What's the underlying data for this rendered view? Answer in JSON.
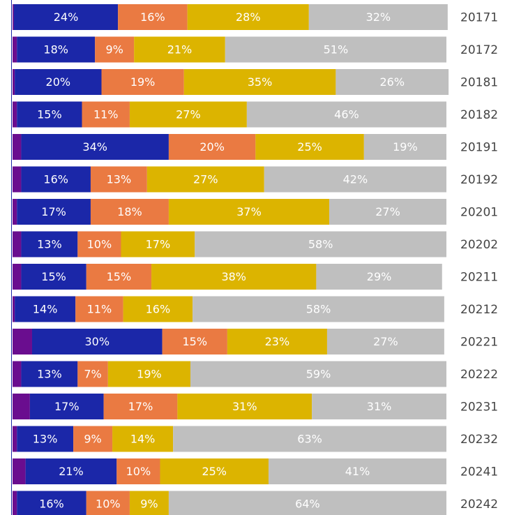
{
  "chart_data": {
    "type": "stacked-barh",
    "categories": [
      "20171",
      "20172",
      "20181",
      "20182",
      "20191",
      "20192",
      "20201",
      "20202",
      "20211",
      "20212",
      "20221",
      "20222",
      "20231",
      "20232",
      "20241",
      "20242"
    ],
    "xlim": [
      0,
      100
    ],
    "series": [
      {
        "color": "#6a0d8f",
        "values": [
          0.3,
          1,
          0.5,
          1,
          2,
          2,
          1,
          2,
          2,
          0.5,
          4.5,
          2,
          4,
          1,
          3,
          1
        ]
      },
      {
        "color": "#1b27a8",
        "values": [
          24,
          18,
          20,
          15,
          34,
          16,
          17,
          13,
          15,
          14,
          30,
          13,
          17,
          13,
          21,
          16
        ],
        "value_labels": [
          "24%",
          "18%",
          "20%",
          "15%",
          "34%",
          "16%",
          "17%",
          "13%",
          "15%",
          "14%",
          "30%",
          "13%",
          "17%",
          "13%",
          "21%",
          "16%"
        ]
      },
      {
        "color": "#ea7a42",
        "values": [
          16,
          9,
          19,
          11,
          20,
          13,
          18,
          10,
          15,
          11,
          15,
          7,
          17,
          9,
          10,
          10
        ],
        "value_labels": [
          "16%",
          "9%",
          "19%",
          "11%",
          "20%",
          "13%",
          "18%",
          "10%",
          "15%",
          "11%",
          "15%",
          "7%",
          "17%",
          "9%",
          "10%",
          "10%"
        ]
      },
      {
        "color": "#dcb400",
        "values": [
          28,
          21,
          35,
          27,
          25,
          27,
          37,
          17,
          38,
          16,
          23,
          19,
          31,
          14,
          25,
          9
        ],
        "value_labels": [
          "28%",
          "21%",
          "35%",
          "27%",
          "25%",
          "27%",
          "37%",
          "17%",
          "38%",
          "16%",
          "23%",
          "19%",
          "31%",
          "14%",
          "25%",
          "9%"
        ]
      },
      {
        "color": "#bfbfbf",
        "values": [
          32,
          51,
          26,
          46,
          19,
          42,
          27,
          58,
          29,
          58,
          27,
          59,
          31,
          63,
          41,
          64
        ],
        "value_labels": [
          "32%",
          "51%",
          "26%",
          "46%",
          "19%",
          "42%",
          "27%",
          "58%",
          "29%",
          "58%",
          "27%",
          "59%",
          "31%",
          "63%",
          "41%",
          "64%"
        ]
      }
    ]
  }
}
